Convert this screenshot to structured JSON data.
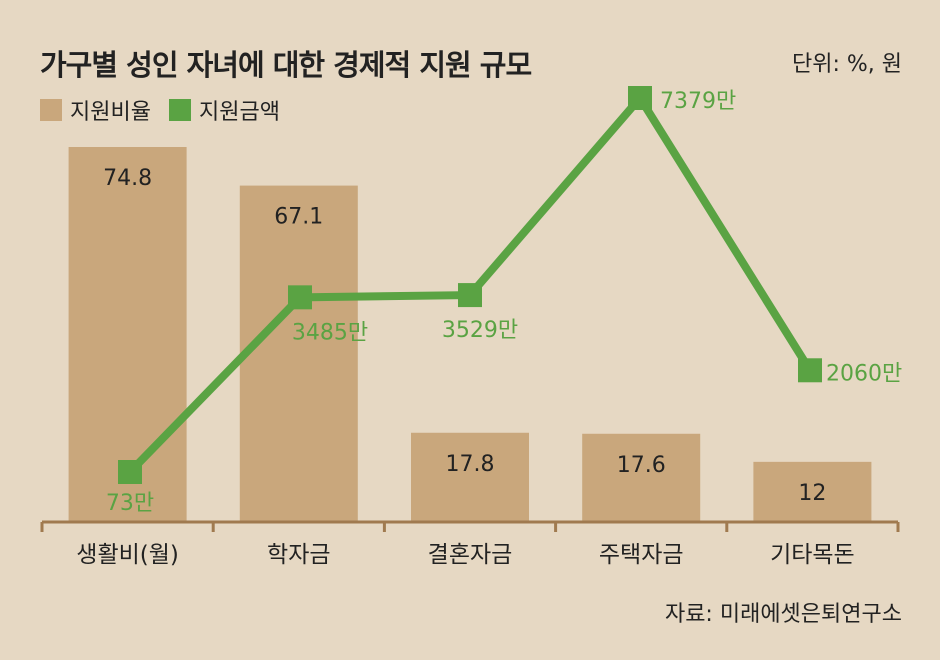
{
  "chart_data": {
    "type": "bar",
    "title": "가구별 성인 자녀에 대한 경제적 지원 규모",
    "unit": "단위: %, 원",
    "categories": [
      "생활비(월)",
      "학자금",
      "결혼자금",
      "주택자금",
      "기타목돈"
    ],
    "series": [
      {
        "name": "지원비율",
        "type": "bar",
        "color": "#c9a77c",
        "values": [
          74.8,
          67.1,
          17.8,
          17.6,
          12
        ],
        "labels": [
          "74.8",
          "67.1",
          "17.8",
          "17.6",
          "12"
        ]
      },
      {
        "name": "지원금액",
        "type": "line",
        "color": "#5aa343",
        "values": [
          73,
          3485,
          3529,
          7379,
          2060
        ],
        "labels": [
          "73만",
          "3485만",
          "3529만",
          "7379만",
          "2060만"
        ]
      }
    ],
    "source": "자료: 미래에셋은퇴연구소"
  }
}
